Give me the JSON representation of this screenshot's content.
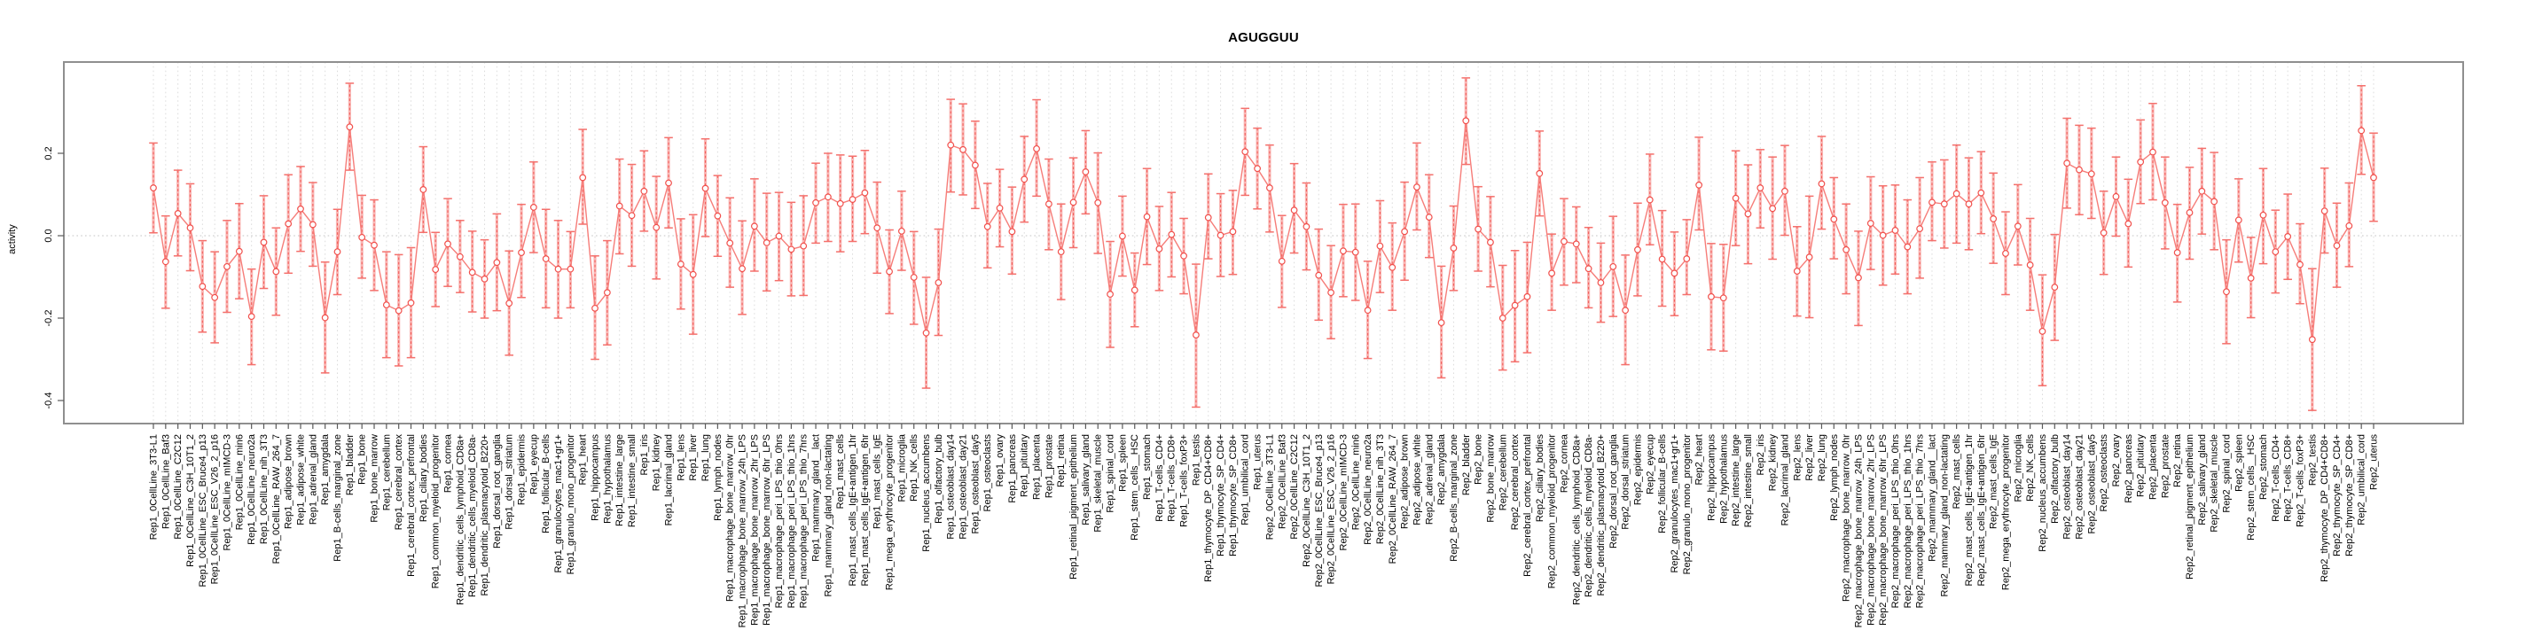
{
  "chart_data": {
    "type": "line",
    "subtype": "point-estimates-with-error-bars",
    "title": "AGUGGUU",
    "ylabel": "activity",
    "xlabel": "",
    "legend": "none",
    "grid": "dotted vertical line per category, dotted horizontal line at zero",
    "ylim": [
      -0.456,
      0.421
    ],
    "yticks": [
      {
        "value": 0.2,
        "label": "0.2"
      },
      {
        "value": 0.0,
        "label": "0.0"
      },
      {
        "value": -0.2,
        "label": "-0.2"
      },
      {
        "value": -0.4,
        "label": "-0.4"
      }
    ],
    "colors": {
      "point": "#f1504c",
      "line": "#f67d79",
      "band": "#f9b7b5",
      "cap": "#f4706c",
      "grid": "#dcdcdc",
      "zero": "#c4c4c4",
      "frame": "#8f8f8f",
      "tick": "#5a5a5a",
      "text": "#000000"
    },
    "categories": [
      "Rep1_0CellLine_3T3-L1",
      "Rep1_0CellLine_Baf3",
      "Rep1_0CellLine_C2C12",
      "Rep1_0CellLine_C3H_10T1_2",
      "Rep1_0CellLine_ESC_Bruce4_p13",
      "Rep1_0CellLine_ESC_V26_2_p16",
      "Rep1_0CellLine_mIMCD-3",
      "Rep1_0CellLine_min6",
      "Rep1_0CellLine_neuro2a",
      "Rep1_0CellLine_nih_3T3",
      "Rep1_0CellLine_RAW_264_7",
      "Rep1_adipose_brown",
      "Rep1_adipose_white",
      "Rep1_adrenal_gland",
      "Rep1_amygdala",
      "Rep1_B-cells_marginal_zone",
      "Rep1_bladder",
      "Rep1_bone",
      "Rep1_bone_marrow",
      "Rep1_cerebellum",
      "Rep1_cerebral_cortex",
      "Rep1_cerebral_cortex_prefrontal",
      "Rep1_ciliary_bodies",
      "Rep1_common_myeloid_progenitor",
      "Rep1_cornea",
      "Rep1_dendritic_cells_lymphoid_CD8a+",
      "Rep1_dendritic_cells_myeloid_CD8a-",
      "Rep1_dendritic_plasmacytoid_B220+",
      "Rep1_dorsal_root_ganglia",
      "Rep1_dorsal_striatum",
      "Rep1_epidermis",
      "Rep1_eyecup",
      "Rep1_follicular_B-cells",
      "Rep1_granulocytes_mac1+gr1+",
      "Rep1_granulo_mono_progenitor",
      "Rep1_heart",
      "Rep1_hippocampus",
      "Rep1_hypothalamus",
      "Rep1_intestine_large",
      "Rep1_intestine_small",
      "Rep1_iris",
      "Rep1_kidney",
      "Rep1_lacrimal_gland",
      "Rep1_lens",
      "Rep1_liver",
      "Rep1_lung",
      "Rep1_lymph_nodes",
      "Rep1_macrophage_bone_marrow_0hr",
      "Rep1_macrophage_bone_marrow_24h_LPS",
      "Rep1_macrophage_bone_marrow_2hr_LPS",
      "Rep1_macrophage_bone_marrow_6hr_LPS",
      "Rep1_macrophage_peri_LPS_thio_0hrs",
      "Rep1_macrophage_peri_LPS_thio_1hrs",
      "Rep1_macrophage_peri_LPS_thio_7hrs",
      "Rep1_mammary_gland__lact",
      "Rep1_mammary_gland_non-lactating",
      "Rep1_mast_cells",
      "Rep1_mast_cells_IgE+antigen_1hr",
      "Rep1_mast_cells_IgE+antigen_6hr",
      "Rep1_mast_cells_IgE",
      "Rep1_mega_erythrocyte_progenitor",
      "Rep1_microglia",
      "Rep1_NK_cells",
      "Rep1_nucleus_accumbens",
      "Rep1_olfactory_bulb",
      "Rep1_osteoblast_day14",
      "Rep1_osteoblast_day21",
      "Rep1_osteoblast_day5",
      "Rep1_osteoclasts",
      "Rep1_ovary",
      "Rep1_pancreas",
      "Rep1_pituitary",
      "Rep1_placenta",
      "Rep1_prostate",
      "Rep1_retina",
      "Rep1_retinal_pigment_epithelium",
      "Rep1_salivary_gland",
      "Rep1_skeletal_muscle",
      "Rep1_spinal_cord",
      "Rep1_spleen",
      "Rep1_stem_cells__HSC",
      "Rep1_stomach",
      "Rep1_T-cells_CD4+",
      "Rep1_T-cells_CD8+",
      "Rep1_T-cells_foxP3+",
      "Rep1_testis",
      "Rep1_thymocyte_DP_CD4+CD8+",
      "Rep1_thymocyte_SP_CD4+",
      "Rep1_thymocyte_SP_CD8+",
      "Rep1_umbilical_cord",
      "Rep1_uterus",
      "Rep2_0CellLine_3T3-L1",
      "Rep2_0CellLine_Baf3",
      "Rep2_0CellLine_C2C12",
      "Rep2_0CellLine_C3H_10T1_2",
      "Rep2_0CellLine_ESC_Bruce4_p13",
      "Rep2_0CellLine_ESC_V26_2_p16",
      "Rep2_0CellLine_mIMCD-3",
      "Rep2_0CellLine_min6",
      "Rep2_0CellLine_neuro2a",
      "Rep2_0CellLine_nih_3T3",
      "Rep2_0CellLine_RAW_264_7",
      "Rep2_adipose_brown",
      "Rep2_adipose_white",
      "Rep2_adrenal_gland",
      "Rep2_amygdala",
      "Rep2_B-cells_marginal_zone",
      "Rep2_bladder",
      "Rep2_bone",
      "Rep2_bone_marrow",
      "Rep2_cerebellum",
      "Rep2_cerebral_cortex",
      "Rep2_cerebral_cortex_prefrontal",
      "Rep2_ciliary_bodies",
      "Rep2_common_myeloid_progenitor",
      "Rep2_cornea",
      "Rep2_dendritic_cells_lymphoid_CD8a+",
      "Rep2_dendritic_cells_myeloid_CD8a-",
      "Rep2_dendritic_plasmacytoid_B220+",
      "Rep2_dorsal_root_ganglia",
      "Rep2_dorsal_striatum",
      "Rep2_epidermis",
      "Rep2_eyecup",
      "Rep2_follicular_B-cells",
      "Rep2_granulocytes_mac1+gr1+",
      "Rep2_granulo_mono_progenitor",
      "Rep2_heart",
      "Rep2_hippocampus",
      "Rep2_hypothalamus",
      "Rep2_intestine_large",
      "Rep2_intestine_small",
      "Rep2_iris",
      "Rep2_kidney",
      "Rep2_lacrimal_gland",
      "Rep2_lens",
      "Rep2_liver",
      "Rep2_lung",
      "Rep2_lymph_nodes",
      "Rep2_macrophage_bone_marrow_0hr",
      "Rep2_macrophage_bone_marrow_24h_LPS",
      "Rep2_macrophage_bone_marrow_2hr_LPS",
      "Rep2_macrophage_bone_marrow_6hr_LPS",
      "Rep2_macrophage_peri_LPS_thio_0hrs",
      "Rep2_macrophage_peri_LPS_thio_1hrs",
      "Rep2_macrophage_peri_LPS_thio_7hrs",
      "Rep2_mammary_gland__lact",
      "Rep2_mammary_gland_non-lactating",
      "Rep2_mast_cells",
      "Rep2_mast_cells_IgE+antigen_1hr",
      "Rep2_mast_cells_IgE+antigen_6hr",
      "Rep2_mast_cells_IgE",
      "Rep2_mega_erythrocyte_progenitor",
      "Rep2_microglia",
      "Rep2_NK_cells",
      "Rep2_nucleus_accumbens",
      "Rep2_olfactory_bulb",
      "Rep2_osteoblast_day14",
      "Rep2_osteoblast_day21",
      "Rep2_osteoblast_day5",
      "Rep2_osteoclasts",
      "Rep2_ovary",
      "Rep2_pancreas",
      "Rep2_pituitary",
      "Rep2_placenta",
      "Rep2_prostate",
      "Rep2_retina",
      "Rep2_retinal_pigment_epithelium",
      "Rep2_salivary_gland",
      "Rep2_skeletal_muscle",
      "Rep2_spinal_cord",
      "Rep2_spleen",
      "Rep2_stem_cells__HSC",
      "Rep2_stomach",
      "Rep2_T-cells_CD4+",
      "Rep2_T-cells_CD8+",
      "Rep2_T-cells_foxP3+",
      "Rep2_testis",
      "Rep2_thymocyte_DP_CD4+CD8+",
      "Rep2_thymocyte_SP_CD4+",
      "Rep2_thymocyte_SP_CD8+",
      "Rep2_umbilical_cord",
      "Rep2_uterus"
    ],
    "values": [
      0.116,
      -0.063,
      0.054,
      0.019,
      -0.123,
      -0.15,
      -0.075,
      -0.038,
      -0.196,
      -0.016,
      -0.087,
      0.029,
      0.065,
      0.027,
      -0.199,
      -0.039,
      0.264,
      -0.004,
      -0.023,
      -0.168,
      -0.182,
      -0.163,
      0.112,
      -0.082,
      -0.02,
      -0.051,
      -0.089,
      -0.105,
      -0.065,
      -0.164,
      -0.041,
      0.069,
      -0.056,
      -0.081,
      -0.081,
      0.141,
      -0.176,
      -0.138,
      0.072,
      0.049,
      0.108,
      0.02,
      0.128,
      -0.069,
      -0.094,
      0.115,
      0.048,
      -0.018,
      -0.08,
      0.023,
      -0.017,
      -0.001,
      -0.033,
      -0.025,
      0.08,
      0.094,
      0.078,
      0.088,
      0.104,
      0.019,
      -0.087,
      0.011,
      -0.101,
      -0.236,
      -0.114,
      0.22,
      0.209,
      0.171,
      0.022,
      0.067,
      0.01,
      0.137,
      0.211,
      0.077,
      -0.039,
      0.081,
      0.155,
      0.08,
      -0.142,
      -0.001,
      -0.132,
      0.046,
      -0.032,
      0.003,
      -0.049,
      -0.241,
      0.044,
      0.001,
      0.01,
      0.204,
      0.163,
      0.116,
      -0.062,
      0.062,
      0.022,
      -0.096,
      -0.138,
      -0.037,
      -0.04,
      -0.181,
      -0.025,
      -0.077,
      0.01,
      0.118,
      0.045,
      -0.211,
      -0.03,
      0.279,
      0.016,
      -0.016,
      -0.2,
      -0.169,
      -0.148,
      0.151,
      -0.091,
      -0.014,
      -0.02,
      -0.08,
      -0.114,
      -0.075,
      -0.181,
      -0.034,
      0.087,
      -0.057,
      -0.091,
      -0.056,
      0.123,
      -0.148,
      -0.151,
      0.091,
      0.053,
      0.116,
      0.066,
      0.108,
      -0.086,
      -0.052,
      0.126,
      0.04,
      -0.034,
      -0.102,
      0.03,
      0.001,
      0.013,
      -0.027,
      0.017,
      0.081,
      0.077,
      0.102,
      0.077,
      0.104,
      0.041,
      -0.043,
      0.023,
      -0.071,
      -0.232,
      -0.125,
      0.176,
      0.16,
      0.15,
      0.007,
      0.095,
      0.029,
      0.179,
      0.203,
      0.08,
      -0.041,
      0.056,
      0.108,
      0.083,
      -0.136,
      0.038,
      -0.103,
      0.05,
      -0.039,
      -0.002,
      -0.07,
      -0.252,
      0.06,
      -0.024,
      0.024,
      0.255,
      0.141
    ],
    "ci_low": [
      0.007,
      -0.176,
      -0.049,
      -0.085,
      -0.234,
      -0.26,
      -0.186,
      -0.153,
      -0.313,
      -0.128,
      -0.193,
      -0.091,
      -0.038,
      -0.074,
      -0.333,
      -0.143,
      0.159,
      -0.103,
      -0.133,
      -0.296,
      -0.316,
      -0.296,
      0.008,
      -0.172,
      -0.123,
      -0.138,
      -0.185,
      -0.2,
      -0.182,
      -0.29,
      -0.15,
      -0.041,
      -0.175,
      -0.2,
      -0.175,
      0.028,
      -0.3,
      -0.265,
      -0.044,
      -0.074,
      0.011,
      -0.105,
      0.019,
      -0.178,
      -0.239,
      -0.002,
      -0.05,
      -0.125,
      -0.191,
      -0.086,
      -0.134,
      -0.109,
      -0.146,
      -0.145,
      -0.018,
      -0.014,
      -0.039,
      -0.014,
      0.005,
      -0.091,
      -0.189,
      -0.084,
      -0.215,
      -0.37,
      -0.242,
      0.106,
      0.099,
      0.066,
      -0.078,
      -0.027,
      -0.093,
      0.033,
      0.096,
      -0.034,
      -0.155,
      -0.029,
      0.053,
      -0.043,
      -0.271,
      -0.098,
      -0.221,
      -0.07,
      -0.133,
      -0.1,
      -0.141,
      -0.416,
      -0.056,
      -0.099,
      -0.094,
      0.098,
      0.065,
      0.009,
      -0.174,
      -0.042,
      -0.083,
      -0.205,
      -0.25,
      -0.148,
      -0.157,
      -0.298,
      -0.138,
      -0.181,
      -0.108,
      0.014,
      -0.053,
      -0.345,
      -0.133,
      0.173,
      -0.086,
      -0.124,
      -0.326,
      -0.306,
      -0.284,
      0.048,
      -0.181,
      -0.12,
      -0.114,
      -0.175,
      -0.21,
      -0.196,
      -0.313,
      -0.146,
      -0.022,
      -0.171,
      -0.194,
      -0.143,
      0.014,
      -0.277,
      -0.28,
      -0.024,
      -0.068,
      0.019,
      -0.057,
      0.001,
      -0.195,
      -0.199,
      0.016,
      -0.056,
      -0.141,
      -0.218,
      -0.082,
      -0.12,
      -0.093,
      -0.141,
      -0.103,
      -0.012,
      -0.03,
      -0.018,
      -0.034,
      0.005,
      -0.067,
      -0.143,
      -0.071,
      -0.181,
      -0.364,
      -0.254,
      0.067,
      0.051,
      0.042,
      -0.094,
      -0.001,
      -0.076,
      0.078,
      0.087,
      -0.032,
      -0.161,
      -0.057,
      0.004,
      -0.034,
      -0.262,
      -0.064,
      -0.199,
      -0.068,
      -0.139,
      -0.106,
      -0.165,
      -0.424,
      -0.042,
      -0.125,
      -0.075,
      0.149,
      0.035
    ],
    "ci_high": [
      0.225,
      0.048,
      0.159,
      0.126,
      -0.012,
      -0.039,
      0.037,
      0.078,
      -0.081,
      0.097,
      0.019,
      0.148,
      0.168,
      0.129,
      -0.064,
      0.064,
      0.37,
      0.098,
      0.087,
      -0.039,
      -0.046,
      -0.029,
      0.216,
      0.008,
      0.09,
      0.037,
      0.011,
      -0.01,
      0.053,
      -0.037,
      0.076,
      0.179,
      0.064,
      0.037,
      0.01,
      0.258,
      -0.049,
      -0.012,
      0.186,
      0.173,
      0.206,
      0.144,
      0.238,
      0.041,
      0.051,
      0.235,
      0.146,
      0.092,
      0.036,
      0.138,
      0.103,
      0.105,
      0.081,
      0.097,
      0.176,
      0.2,
      0.196,
      0.193,
      0.207,
      0.13,
      0.014,
      0.108,
      0.01,
      -0.101,
      0.016,
      0.331,
      0.32,
      0.278,
      0.127,
      0.161,
      0.118,
      0.241,
      0.33,
      0.186,
      0.077,
      0.189,
      0.255,
      0.201,
      -0.014,
      0.096,
      -0.042,
      0.163,
      0.071,
      0.105,
      0.042,
      -0.069,
      0.15,
      0.102,
      0.11,
      0.309,
      0.261,
      0.22,
      0.049,
      0.175,
      0.128,
      0.016,
      -0.024,
      0.076,
      0.077,
      -0.062,
      0.085,
      0.031,
      0.13,
      0.225,
      0.148,
      -0.074,
      0.072,
      0.383,
      0.119,
      0.095,
      -0.072,
      -0.036,
      -0.016,
      0.254,
      0.004,
      0.09,
      0.07,
      0.02,
      -0.018,
      0.047,
      -0.047,
      0.079,
      0.198,
      0.061,
      0.009,
      0.039,
      0.239,
      -0.019,
      -0.021,
      0.206,
      0.172,
      0.209,
      0.191,
      0.219,
      0.022,
      0.096,
      0.241,
      0.141,
      0.077,
      0.011,
      0.143,
      0.121,
      0.123,
      0.087,
      0.141,
      0.179,
      0.184,
      0.22,
      0.189,
      0.204,
      0.152,
      0.058,
      0.124,
      0.042,
      -0.095,
      0.003,
      0.285,
      0.268,
      0.261,
      0.108,
      0.191,
      0.137,
      0.281,
      0.321,
      0.191,
      0.076,
      0.166,
      0.212,
      0.202,
      -0.01,
      0.138,
      -0.004,
      0.163,
      0.062,
      0.101,
      0.029,
      -0.08,
      0.164,
      0.079,
      0.128,
      0.364,
      0.249
    ]
  }
}
